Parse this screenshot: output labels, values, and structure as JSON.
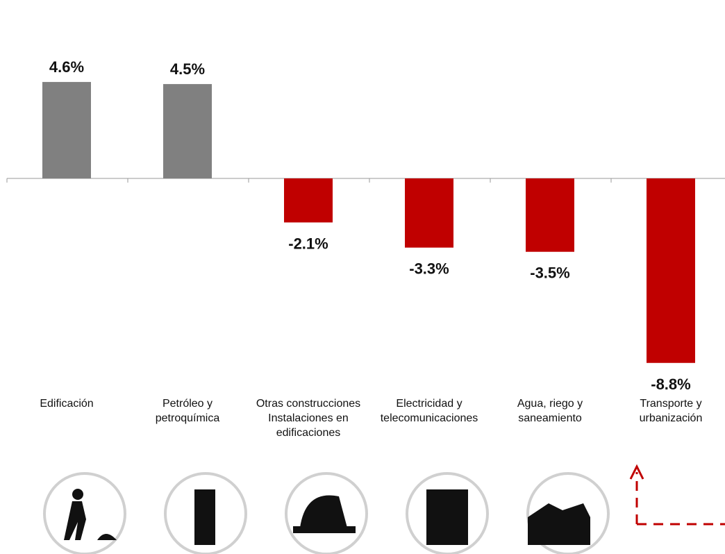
{
  "chart_data": {
    "type": "bar",
    "categories": [
      "Edificación",
      "Petróleo y\npetroquímica",
      "Otras construcciones\nInstalaciones en\nedificaciones",
      "Electricidad y\ntelecomunicaciones",
      "Agua, riego y\nsaneamiento",
      "Transporte y\nurbanización"
    ],
    "values": [
      4.6,
      4.5,
      -2.1,
      -3.3,
      -3.5,
      -8.8
    ],
    "value_labels": [
      "4.6%",
      "4.5%",
      "-2.1%",
      "-3.3%",
      "-3.5%",
      "-8.8%"
    ],
    "colors": [
      "#808080",
      "#808080",
      "#c00000",
      "#c00000",
      "#c00000",
      "#c00000"
    ]
  }
}
